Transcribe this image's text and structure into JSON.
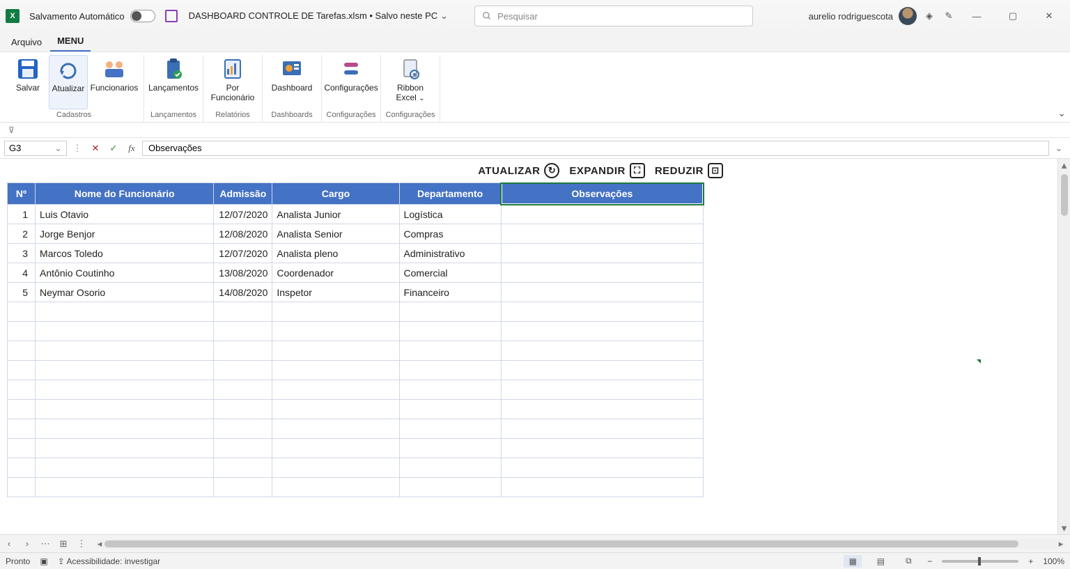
{
  "title": {
    "autosave_label": "Salvamento Automático",
    "filename": "DASHBOARD CONTROLE DE Tarefas.xlsm • Salvo neste PC",
    "search_placeholder": "Pesquisar",
    "username": "aurelio rodriguescota"
  },
  "file_tabs": {
    "arquivo": "Arquivo",
    "menu": "MENU"
  },
  "ribbon": {
    "salvar": "Salvar",
    "atualizar": "Atualizar",
    "funcionarios": "Funcionarios",
    "lancamentos": "Lançamentos",
    "por_funcionario": "Por Funcionário",
    "dashboard": "Dashboard",
    "configuracoes": "Configurações",
    "ribbon_excel": "Ribbon Excel",
    "group_cadastros": "Cadastros",
    "group_lancamentos": "Lançamentos",
    "group_relatorios": "Relatórios",
    "group_dashboards": "Dashboards",
    "group_config1": "Configurações",
    "group_config2": "Configurações"
  },
  "formula": {
    "cell_ref": "G3",
    "content": "Observações"
  },
  "sheet_actions": {
    "atualizar": "ATUALIZAR",
    "expandir": "EXPANDIR",
    "reduzir": "REDUZIR"
  },
  "table": {
    "headers": {
      "n": "Nº",
      "nome": "Nome do Funcionário",
      "admissao": "Admissão",
      "cargo": "Cargo",
      "departamento": "Departamento",
      "observacoes": "Observações"
    },
    "rows": [
      {
        "n": "1",
        "nome": "Luis Otavio",
        "admissao": "12/07/2020",
        "cargo": "Analista Junior",
        "dep": "Logística",
        "obs": ""
      },
      {
        "n": "2",
        "nome": "Jorge Benjor",
        "admissao": "12/08/2020",
        "cargo": "Analista Senior",
        "dep": "Compras",
        "obs": ""
      },
      {
        "n": "3",
        "nome": "Marcos Toledo",
        "admissao": "12/07/2020",
        "cargo": "Analista pleno",
        "dep": "Administrativo",
        "obs": ""
      },
      {
        "n": "4",
        "nome": "Antônio Coutinho",
        "admissao": "13/08/2020",
        "cargo": "Coordenador",
        "dep": "Comercial",
        "obs": ""
      },
      {
        "n": "5",
        "nome": "Neymar Osorio",
        "admissao": "14/08/2020",
        "cargo": "Inspetor",
        "dep": "Financeiro",
        "obs": ""
      }
    ],
    "empty_row_count": 10,
    "header_bg": "#4472c4",
    "header_fg": "#ffffff",
    "border_color": "#d0d7e5",
    "selection_color": "#1f7a3e"
  },
  "status": {
    "pronto": "Pronto",
    "accessibility": "Acessibilidade: investigar",
    "zoom": "100%"
  }
}
